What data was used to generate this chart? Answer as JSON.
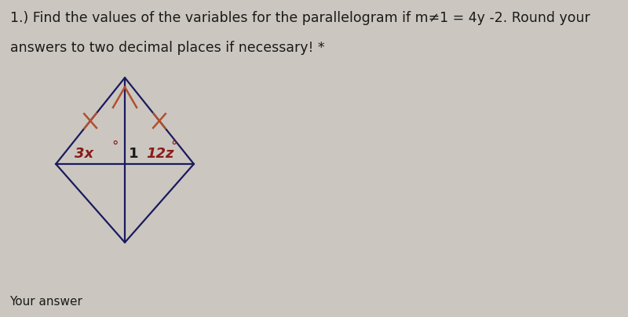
{
  "bg_color": "#cbc7c0",
  "title_line1": "1.) Find the values of the variables for the parallelogram if m≠1 = 4y -2. Round your",
  "title_line2": "answers to two decimal places if necessary! *",
  "footer_text": "Your answer",
  "label_3x": "3x",
  "label_3x_deg": "°",
  "label_1": "1",
  "label_12z": "12z",
  "label_12z_deg": "°",
  "diamond_color": "#1a1a5e",
  "tick_color": "#b05030",
  "label_color_red": "#8b1a1a",
  "label_color_black": "#1a1a1a",
  "title_fontsize": 12.5,
  "footer_fontsize": 11,
  "label_fontsize": 13
}
